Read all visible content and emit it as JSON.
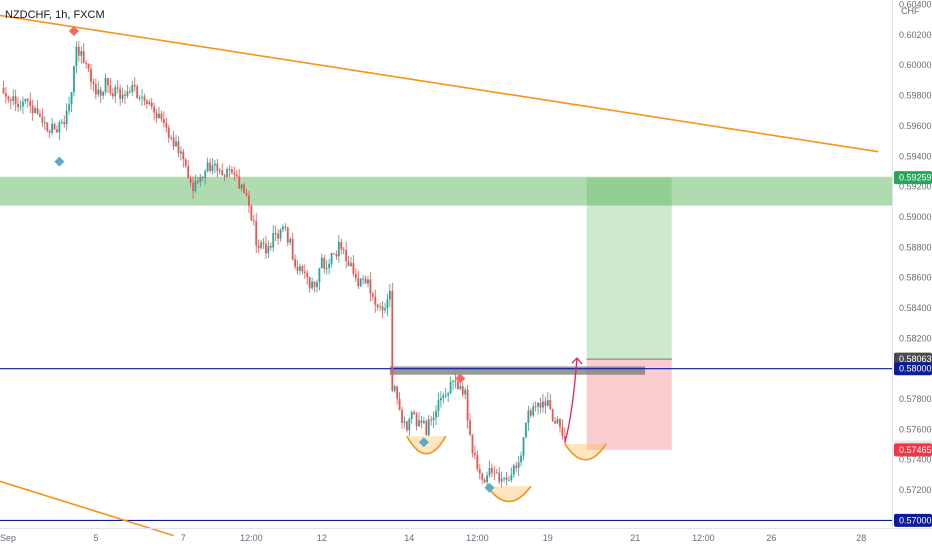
{
  "chart_data": {
    "type": "candlestick",
    "title": "NZDCHF, 1h, FXCM",
    "symbol": "NZDCHF",
    "interval": "1h",
    "source": "FXCM",
    "currency_label": "CHF",
    "ylim": [
      0.5695,
      0.6043
    ],
    "y_ticks": [
      "0.60400",
      "0.60200",
      "0.60000",
      "0.59800",
      "0.59600",
      "0.59400",
      "0.59200",
      "0.59000",
      "0.58800",
      "0.58600",
      "0.58400",
      "0.58200",
      "0.58000",
      "0.57800",
      "0.57600",
      "0.57400",
      "0.57200",
      "0.57000"
    ],
    "x_ticks": [
      {
        "label": "Sep",
        "bar": 0
      },
      {
        "label": "5",
        "bar": 38
      },
      {
        "label": "7",
        "bar": 74
      },
      {
        "label": "12:00",
        "bar": 102
      },
      {
        "label": "12",
        "bar": 131
      },
      {
        "label": "14",
        "bar": 167
      },
      {
        "label": "12:00",
        "bar": 195
      },
      {
        "label": "19",
        "bar": 224
      },
      {
        "label": "21",
        "bar": 260
      },
      {
        "label": "12:00",
        "bar": 288
      },
      {
        "label": "26",
        "bar": 316
      },
      {
        "label": "28",
        "bar": 353
      }
    ],
    "price_path": [
      [
        0,
        0.5985
      ],
      [
        3,
        0.5978
      ],
      [
        6,
        0.597
      ],
      [
        9,
        0.598
      ],
      [
        12,
        0.5972
      ],
      [
        16,
        0.596
      ],
      [
        19,
        0.5958
      ],
      [
        22,
        0.5955
      ],
      [
        25,
        0.5965
      ],
      [
        28,
        0.5985
      ],
      [
        30,
        0.601
      ],
      [
        32,
        0.6008
      ],
      [
        35,
        0.5995
      ],
      [
        38,
        0.598
      ],
      [
        42,
        0.5988
      ],
      [
        46,
        0.5982
      ],
      [
        50,
        0.5978
      ],
      [
        54,
        0.5985
      ],
      [
        58,
        0.5975
      ],
      [
        62,
        0.5968
      ],
      [
        66,
        0.596
      ],
      [
        70,
        0.595
      ],
      [
        74,
        0.594
      ],
      [
        78,
        0.592
      ],
      [
        82,
        0.593
      ],
      [
        86,
        0.5935
      ],
      [
        90,
        0.5925
      ],
      [
        94,
        0.593
      ],
      [
        98,
        0.5918
      ],
      [
        101,
        0.591
      ],
      [
        104,
        0.5885
      ],
      [
        108,
        0.5878
      ],
      [
        112,
        0.5888
      ],
      [
        116,
        0.5893
      ],
      [
        120,
        0.587
      ],
      [
        124,
        0.5865
      ],
      [
        128,
        0.585
      ],
      [
        131,
        0.587
      ],
      [
        134,
        0.587
      ],
      [
        138,
        0.588
      ],
      [
        142,
        0.5868
      ],
      [
        146,
        0.5858
      ],
      [
        150,
        0.5855
      ],
      [
        154,
        0.584
      ],
      [
        157,
        0.584
      ],
      [
        159,
        0.585
      ],
      [
        160,
        0.579
      ],
      [
        163,
        0.5772
      ],
      [
        166,
        0.576
      ],
      [
        168,
        0.5768
      ],
      [
        171,
        0.5765
      ],
      [
        174,
        0.576
      ],
      [
        177,
        0.5772
      ],
      [
        180,
        0.578
      ],
      [
        183,
        0.5788
      ],
      [
        187,
        0.5788
      ],
      [
        190,
        0.5782
      ],
      [
        192,
        0.5755
      ],
      [
        195,
        0.5735
      ],
      [
        198,
        0.5728
      ],
      [
        201,
        0.5735
      ],
      [
        204,
        0.5725
      ],
      [
        208,
        0.5728
      ],
      [
        212,
        0.574
      ],
      [
        216,
        0.5768
      ],
      [
        220,
        0.5778
      ],
      [
        224,
        0.5775
      ],
      [
        228,
        0.5765
      ],
      [
        231,
        0.575
      ]
    ],
    "trendlines": [
      {
        "from": [
          -2,
          0.6033
        ],
        "to": [
          360,
          0.5943
        ],
        "color": "#f7931a"
      },
      {
        "from": [
          -2,
          0.5726
        ],
        "to": [
          70,
          0.569
        ],
        "color": "#f7931a"
      }
    ],
    "horizontal_levels": [
      {
        "price": 0.58,
        "color": "#0b1c9a"
      },
      {
        "price": 0.57,
        "color": "#0b1c9a"
      }
    ],
    "resistance_zone": {
      "top": 0.59265,
      "bottom": 0.59075,
      "color": "#4caf50"
    },
    "entry_band": {
      "from_bar": 159,
      "to_bar": 264,
      "top": 0.58015,
      "bottom": 0.5796,
      "color": "#777777"
    },
    "long_position": {
      "from_bar": 240,
      "to_bar": 275,
      "entry": 0.58063,
      "target": 0.59259,
      "stop": 0.57465
    },
    "arrow": {
      "from": [
        231,
        0.5751
      ],
      "to": [
        236,
        0.5807
      ],
      "color": "#e91e63"
    },
    "pivot_markers": [
      {
        "type": "high",
        "bar": 29,
        "price": 0.60225
      },
      {
        "type": "low",
        "bar": 23,
        "price": 0.59365
      },
      {
        "type": "low",
        "bar": 173,
        "price": 0.57515
      },
      {
        "type": "high",
        "bar": 188,
        "price": 0.57935
      },
      {
        "type": "low",
        "bar": 200,
        "price": 0.57215
      }
    ],
    "cup_arcs": [
      {
        "from_bar": 166,
        "to_bar": 182,
        "top": 0.57555,
        "bottom": 0.5744
      },
      {
        "from_bar": 199,
        "to_bar": 217,
        "top": 0.57225,
        "bottom": 0.57125
      },
      {
        "from_bar": 231,
        "to_bar": 248,
        "top": 0.57505,
        "bottom": 0.574
      }
    ],
    "price_badges": [
      {
        "label": "0.59259",
        "price": 0.59259,
        "bg": "#26a65b"
      },
      {
        "label": "0.58063",
        "price": 0.58063,
        "bg": "#4a4a4a"
      },
      {
        "label": "0.58000",
        "price": 0.58,
        "bg": "#0b1c9a"
      },
      {
        "label": "0.57484",
        "price": 0.57484,
        "bg": "#e8e8e8",
        "fg": "#131722"
      },
      {
        "label": "0.57465",
        "price": 0.57465,
        "bg": "#f23645"
      },
      {
        "label": "0.57000",
        "price": 0.57,
        "bg": "#0b1c9a"
      }
    ],
    "colors": {
      "up": "#26a69a",
      "down": "#ef5350",
      "grid": "#f0f3fa",
      "axis_text": "#6a6d78"
    },
    "grid": false,
    "legend": "none"
  }
}
